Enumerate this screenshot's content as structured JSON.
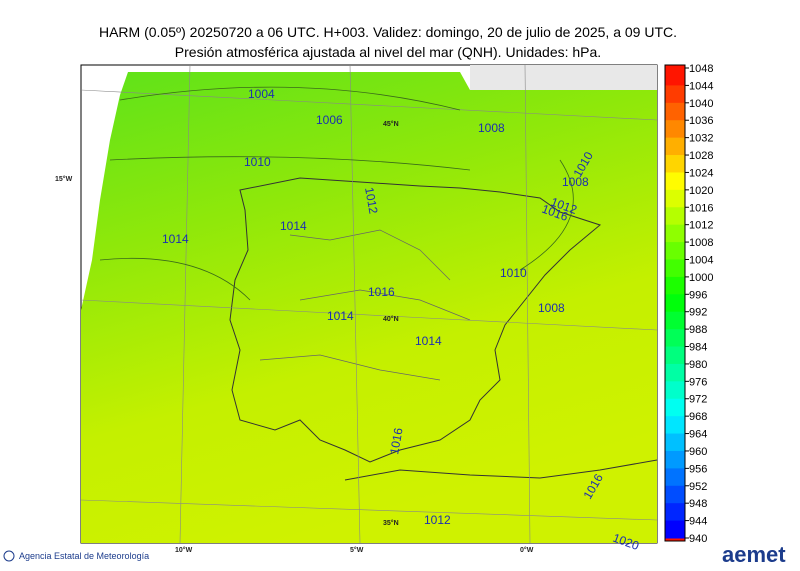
{
  "header": {
    "line1": "HARM (0.05º) 20250720 a 06 UTC. H+003. Validez: domingo, 20 de julio de 2025, a 09 UTC.",
    "line2": "Presión atmosférica ajustada al nivel del mar (QNH). Unidades: hPa."
  },
  "colorbar": {
    "labels": [
      1048,
      1044,
      1040,
      1036,
      1032,
      1028,
      1024,
      1020,
      1016,
      1012,
      1008,
      1004,
      1000,
      996,
      992,
      988,
      984,
      980,
      976,
      972,
      968,
      964,
      960,
      956,
      952,
      948,
      944,
      940
    ]
  },
  "isobar_labels": [
    "1004",
    "1006",
    "1008",
    "1010",
    "1012",
    "1014",
    "1014",
    "1016",
    "1014",
    "1014",
    "1010",
    "1008",
    "1008",
    "1012",
    "1016",
    "1010",
    "1016",
    "1012",
    "1020",
    "1016"
  ],
  "graticule_labels": [
    "15°W",
    "45°N",
    "40°N",
    "35°N",
    "10°W",
    "5°W",
    "0°W"
  ],
  "footer": {
    "agency": "Agencia Estatal de Meteorología",
    "logo": "aemet"
  }
}
